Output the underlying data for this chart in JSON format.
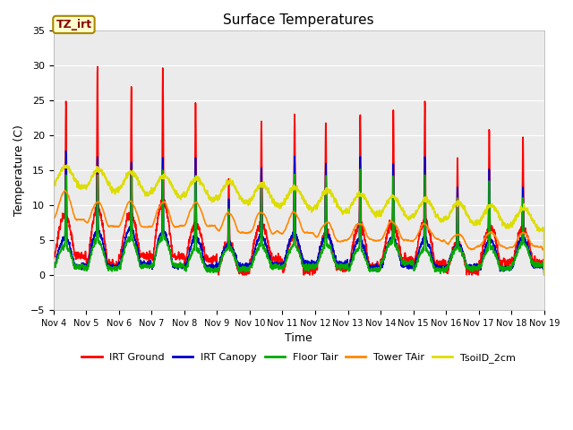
{
  "title": "Surface Temperatures",
  "xlabel": "Time",
  "ylabel": "Temperature (C)",
  "ylim": [
    -5,
    35
  ],
  "xlim": [
    0,
    15
  ],
  "background_color": "#e8e8e8",
  "plot_bg": "#ebebeb",
  "annotation_text": "TZ_irt",
  "annotation_color": "#880000",
  "annotation_bg": "#ffffcc",
  "annotation_border": "#aa8800",
  "series": {
    "IRT Ground": {
      "color": "#ff0000",
      "lw": 1.2
    },
    "IRT Canopy": {
      "color": "#0000cc",
      "lw": 1.2
    },
    "Floor Tair": {
      "color": "#00aa00",
      "lw": 1.2
    },
    "Tower TAir": {
      "color": "#ff8800",
      "lw": 1.2
    },
    "TsoilD_2cm": {
      "color": "#dddd00",
      "lw": 1.2
    }
  },
  "xtick_labels": [
    "Nov 4",
    "Nov 5",
    "Nov 6",
    "Nov 7",
    "Nov 8",
    "Nov 9",
    "Nov 10",
    "Nov 11",
    "Nov 12",
    "Nov 13",
    "Nov 14",
    "Nov 15",
    "Nov 16",
    "Nov 17",
    "Nov 18",
    "Nov 19"
  ],
  "ytick_values": [
    -5,
    0,
    5,
    10,
    15,
    20,
    25,
    30,
    35
  ],
  "figsize": [
    6.4,
    4.8
  ],
  "dpi": 100
}
